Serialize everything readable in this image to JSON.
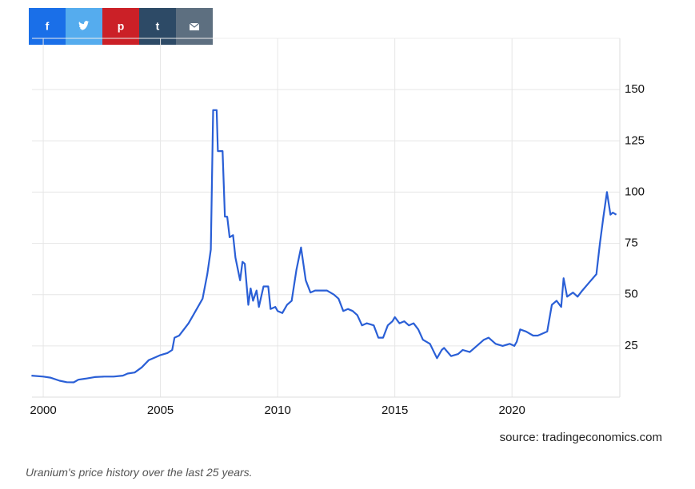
{
  "share_buttons": [
    {
      "icon": "f",
      "color": "#1a6fe8"
    },
    {
      "color": "#55acee"
    },
    {
      "icon": "p",
      "color": "#cb2027"
    },
    {
      "icon": "t",
      "color": "#2d4a66"
    },
    {
      "color": "#5d6f80"
    }
  ],
  "chart_data": {
    "type": "line",
    "source": "source: tradingeconomics.com",
    "caption": "Uranium's price history over the last 25 years.",
    "xlim": [
      1999.52,
      2024.6
    ],
    "xticks": [
      2000,
      2005,
      2010,
      2015,
      2020
    ],
    "ylim": [
      0,
      175
    ],
    "yticks": [
      25,
      50,
      75,
      100,
      125,
      150
    ],
    "grid": true,
    "series": [
      {
        "color": "#2a5fd6",
        "x": [
          1999.5,
          2000.0,
          2000.3,
          2000.7,
          2001.0,
          2001.3,
          2001.5,
          2001.8,
          2002.2,
          2002.6,
          2003.0,
          2003.4,
          2003.6,
          2003.9,
          2004.2,
          2004.5,
          2004.8,
          2005.0,
          2005.3,
          2005.5,
          2005.6,
          2005.8,
          2006.0,
          2006.2,
          2006.4,
          2006.6,
          2006.8,
          2007.0,
          2007.15,
          2007.25,
          2007.4,
          2007.45,
          2007.65,
          2007.75,
          2007.85,
          2007.95,
          2008.1,
          2008.2,
          2008.4,
          2008.5,
          2008.6,
          2008.75,
          2008.85,
          2008.95,
          2009.1,
          2009.2,
          2009.4,
          2009.6,
          2009.7,
          2009.9,
          2010.0,
          2010.2,
          2010.4,
          2010.6,
          2010.8,
          2011.0,
          2011.2,
          2011.4,
          2011.6,
          2011.8,
          2012.1,
          2012.4,
          2012.6,
          2012.8,
          2013.0,
          2013.2,
          2013.4,
          2013.6,
          2013.8,
          2014.1,
          2014.3,
          2014.5,
          2014.7,
          2014.9,
          2015.0,
          2015.2,
          2015.4,
          2015.6,
          2015.8,
          2016.0,
          2016.2,
          2016.5,
          2016.8,
          2017.0,
          2017.1,
          2017.4,
          2017.7,
          2017.9,
          2018.2,
          2018.5,
          2018.8,
          2019.0,
          2019.3,
          2019.6,
          2019.9,
          2020.1,
          2020.2,
          2020.35,
          2020.6,
          2020.9,
          2021.1,
          2021.3,
          2021.5,
          2021.7,
          2021.9,
          2022.1,
          2022.2,
          2022.35,
          2022.6,
          2022.8,
          2023.0,
          2023.3,
          2023.6,
          2023.75,
          2023.9,
          2024.05,
          2024.2,
          2024.3,
          2024.45
        ],
        "values": [
          10.5,
          10,
          9.5,
          8,
          7.3,
          7.2,
          8.5,
          9,
          9.8,
          10,
          10,
          10.5,
          11.5,
          12,
          14.5,
          18,
          19.5,
          20.5,
          21.5,
          23,
          29,
          30,
          33,
          36,
          40,
          44,
          48,
          60,
          72,
          140,
          140,
          120,
          120,
          88,
          88,
          78,
          79,
          68,
          57,
          66,
          65,
          45,
          53,
          47,
          52,
          44,
          54,
          54,
          43,
          44,
          42,
          41,
          45,
          47,
          62,
          73,
          57,
          51,
          52,
          52,
          52,
          50,
          48,
          42,
          43,
          42,
          40,
          35,
          36,
          35,
          29,
          29,
          35,
          37,
          39,
          36,
          37,
          35,
          36,
          33,
          28,
          26,
          19,
          23,
          24,
          20,
          21,
          23,
          22,
          25,
          28,
          29,
          26,
          25,
          26,
          25,
          27,
          33,
          32,
          30,
          30,
          31,
          32,
          45,
          47,
          44,
          58,
          49,
          51,
          49,
          52,
          56,
          60,
          75,
          88,
          100,
          89,
          90,
          89
        ]
      }
    ]
  }
}
